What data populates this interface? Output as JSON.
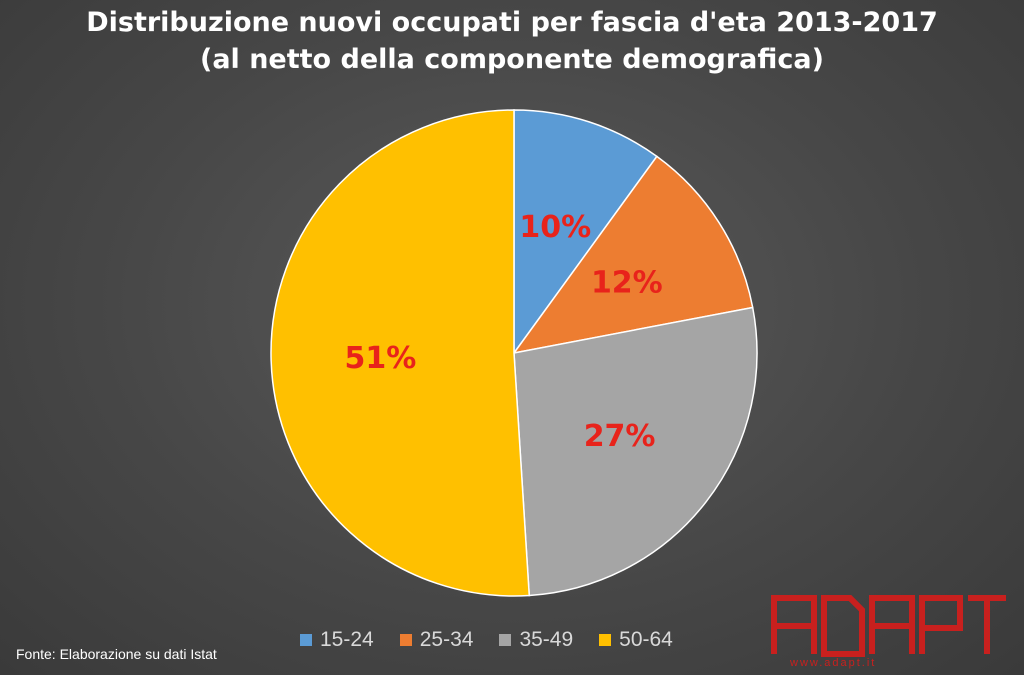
{
  "title": {
    "line1": "Distribuzione nuovi occupati per fascia d'eta 2013-2017",
    "line2": "(al netto della componente demografica)"
  },
  "chart_data": {
    "type": "pie",
    "title": "Distribuzione nuovi occupati per fascia d'eta 2013-2017 (al netto della componente demografica)",
    "categories": [
      "15-24",
      "25-34",
      "35-49",
      "50-64"
    ],
    "values": [
      10,
      12,
      27,
      51
    ],
    "labels": [
      "10%",
      "12%",
      "27%",
      "51%"
    ],
    "colors": [
      "#5b9bd5",
      "#ed7d31",
      "#a5a5a5",
      "#ffc000"
    ],
    "label_color": "#e8231b",
    "legend_position": "bottom"
  },
  "legend": {
    "items": [
      {
        "label": "15-24",
        "color": "#5b9bd5"
      },
      {
        "label": "25-34",
        "color": "#ed7d31"
      },
      {
        "label": "35-49",
        "color": "#a5a5a5"
      },
      {
        "label": "50-64",
        "color": "#ffc000"
      }
    ]
  },
  "source": "Fonte: Elaborazione su dati Istat",
  "logo": {
    "text": "ADAPT",
    "url_text": "www.adapt.it",
    "color": "#c8201e"
  }
}
